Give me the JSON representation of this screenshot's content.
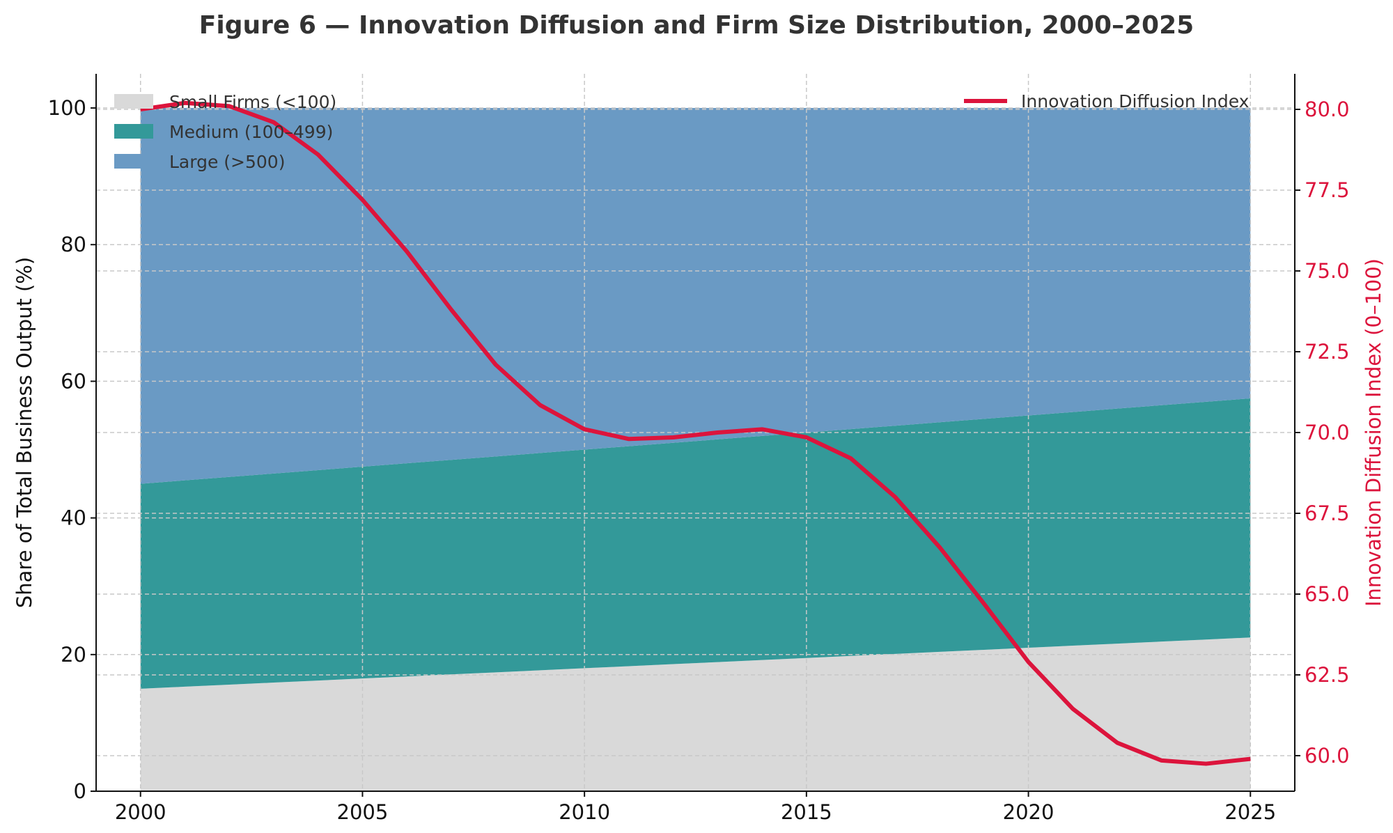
{
  "chart_data": {
    "type": "area",
    "title": "Figure 6 — Innovation Diffusion and Firm Size Distribution, 2000–2025",
    "xlabel": "",
    "ylabel": "Share of Total Business Output (%)",
    "y2label": "Innovation Diffusion Index (0–100)",
    "xlim": [
      1999,
      2026
    ],
    "ylim": [
      0,
      105
    ],
    "y2lim": [
      58.9,
      81.1
    ],
    "xticks": [
      2000,
      2005,
      2010,
      2015,
      2020,
      2025
    ],
    "yticks": [
      0,
      20,
      40,
      60,
      80,
      100
    ],
    "y2ticks": [
      "60.0",
      "62.5",
      "65.0",
      "67.5",
      "70.0",
      "72.5",
      "75.0",
      "77.5",
      "80.0"
    ],
    "grid": true,
    "legend_left": "top-left",
    "legend_right": "top-right",
    "x": [
      2000,
      2001,
      2002,
      2003,
      2004,
      2005,
      2006,
      2007,
      2008,
      2009,
      2010,
      2011,
      2012,
      2013,
      2014,
      2015,
      2016,
      2017,
      2018,
      2019,
      2020,
      2021,
      2022,
      2023,
      2024,
      2025
    ],
    "stacked_series": [
      {
        "name": "Small Firms (<100)",
        "color": "#d9d9d9",
        "values": [
          15.0,
          15.3,
          15.6,
          15.9,
          16.2,
          16.5,
          16.8,
          17.1,
          17.4,
          17.7,
          18.0,
          18.3,
          18.6,
          18.9,
          19.2,
          19.5,
          19.8,
          20.1,
          20.4,
          20.7,
          21.0,
          21.3,
          21.6,
          21.9,
          22.2,
          22.5
        ]
      },
      {
        "name": "Medium (100–499)",
        "color": "#339999",
        "values": [
          30.0,
          30.2,
          30.4,
          30.6,
          30.8,
          31.0,
          31.2,
          31.4,
          31.6,
          31.8,
          32.0,
          32.2,
          32.4,
          32.6,
          32.8,
          33.0,
          33.2,
          33.4,
          33.6,
          33.8,
          34.0,
          34.2,
          34.4,
          34.6,
          34.8,
          35.0
        ]
      },
      {
        "name": "Large (>500)",
        "color": "#6a9ac4",
        "values": [
          55.0,
          54.5,
          54.0,
          53.5,
          53.0,
          52.5,
          52.0,
          51.5,
          51.0,
          50.5,
          50.0,
          49.5,
          49.0,
          48.5,
          48.0,
          47.5,
          47.0,
          46.5,
          46.0,
          45.5,
          45.0,
          44.5,
          44.0,
          43.5,
          43.0,
          42.5
        ]
      }
    ],
    "line_series": {
      "name": "Innovation Diffusion Index",
      "color": "#dc143c",
      "axis": "right",
      "values": [
        80.0,
        80.2,
        80.1,
        79.6,
        78.6,
        77.2,
        75.6,
        73.8,
        72.1,
        70.85,
        70.1,
        69.8,
        69.85,
        70.0,
        70.1,
        69.85,
        69.2,
        68.0,
        66.45,
        64.7,
        62.9,
        61.45,
        60.4,
        59.85,
        59.75,
        59.9
      ]
    }
  }
}
